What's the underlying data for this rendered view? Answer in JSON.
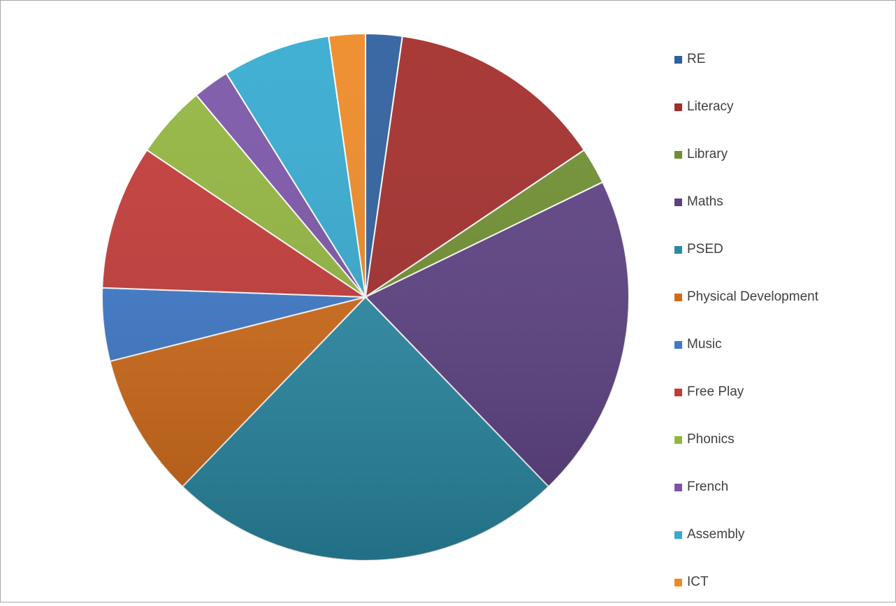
{
  "chart_data": {
    "type": "pie",
    "title": "",
    "legend_position": "right",
    "start_angle_deg": 0,
    "direction": "clockwise",
    "categories": [
      "RE",
      "Literacy",
      "Library",
      "Maths",
      "PSED",
      "Physical Development",
      "Music",
      "Free Play",
      "Phonics",
      "French",
      "Assembly",
      "ICT"
    ],
    "values": [
      2.4,
      14.3,
      2.4,
      21.4,
      26.2,
      9.5,
      4.8,
      9.5,
      4.8,
      2.4,
      7.1,
      2.4
    ],
    "colors": [
      "#2e5f9e",
      "#a32d2b",
      "#6f8f30",
      "#5d4183",
      "#2a8ba6",
      "#d26b18",
      "#3e7acb",
      "#c43a37",
      "#93b63f",
      "#7b55a8",
      "#35abd1",
      "#ee8a26"
    ]
  }
}
